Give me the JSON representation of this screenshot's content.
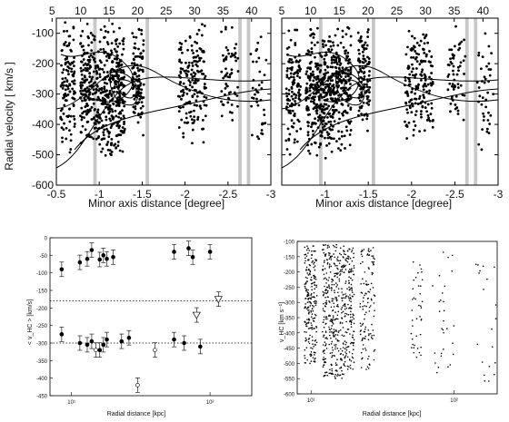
{
  "top_axis_ticks": [
    "5",
    "10",
    "15",
    "20",
    "25",
    "30",
    "35",
    "40"
  ],
  "chart_data": [
    {
      "type": "scatter",
      "panel": "top-left",
      "xlabel": "Minor axis distance  [degree]",
      "ylabel": "Radial velocity  [ km/s ]",
      "xlim": [
        -0.5,
        -3.0
      ],
      "ylim": [
        -600,
        -50
      ],
      "x_ticks": [
        -0.5,
        -1,
        -1.5,
        -2,
        -2.5,
        -3
      ],
      "x_tick_labels": [
        "-0.5",
        "-1",
        "-1.5",
        "-2",
        "-2.5",
        "-3"
      ],
      "y_ticks": [
        -100,
        -200,
        -300,
        -400,
        -500,
        -600
      ],
      "y_tick_labels": [
        "-100",
        "-200",
        "-300",
        "-400",
        "-500",
        "-600"
      ],
      "top_ticks": [
        5,
        10,
        15,
        20,
        25,
        30,
        35,
        40
      ],
      "shaded_bands": [
        [
          -0.93,
          -0.97
        ],
        [
          -1.54,
          -1.58
        ],
        [
          -2.62,
          -2.66
        ],
        [
          -2.72,
          -2.76
        ]
      ],
      "point_clusters": [
        {
          "x": [
            -0.55,
            -0.72
          ],
          "y": [
            -510,
            -60
          ],
          "n": 120
        },
        {
          "x": [
            -0.78,
            -1.3
          ],
          "y": [
            -520,
            -60
          ],
          "n": 520
        },
        {
          "x": [
            -1.38,
            -1.52
          ],
          "y": [
            -450,
            -60
          ],
          "n": 110
        },
        {
          "x": [
            -1.92,
            -2.25
          ],
          "y": [
            -470,
            -60
          ],
          "n": 170
        },
        {
          "x": [
            -2.42,
            -2.62
          ],
          "y": [
            -420,
            -60
          ],
          "n": 60
        },
        {
          "x": [
            -2.76,
            -2.95
          ],
          "y": [
            -520,
            -60
          ],
          "n": 40
        }
      ],
      "grid": false,
      "legend": "none"
    },
    {
      "type": "scatter",
      "panel": "top-right",
      "xlim": [
        -0.5,
        -3.0
      ],
      "ylim": [
        -600,
        -50
      ],
      "x_ticks": [
        -1,
        -1.5,
        -2,
        -2.5,
        -3
      ],
      "x_tick_labels": [
        "-1",
        "-1.5",
        "-2",
        "-2.5",
        "-3"
      ],
      "top_ticks": [
        5,
        10,
        15,
        20,
        25,
        30,
        35,
        40
      ],
      "shaded_bands": [
        [
          -0.93,
          -0.97
        ],
        [
          -1.54,
          -1.58
        ],
        [
          -2.62,
          -2.66
        ],
        [
          -2.72,
          -2.76
        ]
      ],
      "xlabel": "Minor axis distance  [degree]",
      "grid": false,
      "legend": "none"
    },
    {
      "type": "scatter",
      "panel": "bottom-left",
      "xlabel": "Radial distance [kpc]",
      "ylabel": "< v_HC > [km/s]",
      "xscale": "log",
      "xlim": [
        7,
        200
      ],
      "ylim": [
        -450,
        0
      ],
      "x_ticks": [
        10,
        100
      ],
      "x_tick_labels": [
        "10¹",
        "10²"
      ],
      "y_ticks": [
        0,
        -50,
        -100,
        -150,
        -200,
        -250,
        -300,
        -350,
        -400,
        -450
      ],
      "y_tick_labels": [
        "0",
        "-50",
        "-100",
        "-150",
        "-200",
        "-250",
        "-300",
        "-350",
        "-400",
        "-450"
      ],
      "reference_lines": [
        -180,
        -300
      ],
      "series": [
        {
          "x": [
            8.5,
            11.5,
            13,
            14,
            16,
            17,
            18,
            20,
            55,
            70,
            75,
            100
          ],
          "y": [
            -90,
            -70,
            -60,
            -35,
            -62,
            -50,
            -60,
            -55,
            -40,
            -30,
            -55,
            -40
          ]
        },
        {
          "x": [
            8.5,
            11.5,
            13,
            14,
            16,
            17,
            18,
            23,
            26,
            55,
            65,
            85
          ],
          "y": [
            -275,
            -300,
            -305,
            -295,
            -320,
            -305,
            -290,
            -295,
            -285,
            -290,
            -300,
            -310
          ]
        },
        {
          "x": [
            15,
            30,
            40
          ],
          "y": [
            -320,
            -420,
            -320
          ]
        },
        {
          "x": [
            80,
            115
          ],
          "y": [
            -220,
            -175
          ]
        }
      ],
      "grid": false,
      "legend": "none"
    },
    {
      "type": "scatter",
      "panel": "bottom-right",
      "xlabel": "Radial distance [kpc]",
      "ylabel": "v_HC [km s⁻¹]",
      "xscale": "log",
      "xlim": [
        8,
        200
      ],
      "ylim": [
        -600,
        -100
      ],
      "x_ticks": [
        10,
        100
      ],
      "x_tick_labels": [
        "10¹",
        "10²"
      ],
      "y_ticks": [
        -100,
        -150,
        -200,
        -250,
        -300,
        -350,
        -400,
        -450,
        -500,
        -550,
        -600
      ],
      "y_tick_labels": [
        "-100",
        "-150",
        "-200",
        "-250",
        "-300",
        "-350",
        "-400",
        "-450",
        "-500",
        "-550",
        "-600"
      ],
      "point_clusters": [
        {
          "x": [
            9,
            11
          ],
          "y": [
            -500,
            -110
          ],
          "n": 220
        },
        {
          "x": [
            12,
            17
          ],
          "y": [
            -550,
            -110
          ],
          "n": 350
        },
        {
          "x": [
            17,
            20
          ],
          "y": [
            -520,
            -120
          ],
          "n": 160
        },
        {
          "x": [
            22,
            28
          ],
          "y": [
            -520,
            -120
          ],
          "n": 120
        },
        {
          "x": [
            50,
            60
          ],
          "y": [
            -480,
            -130
          ],
          "n": 40
        },
        {
          "x": [
            70,
            100
          ],
          "y": [
            -560,
            -130
          ],
          "n": 30
        },
        {
          "x": [
            140,
            200
          ],
          "y": [
            -560,
            -110
          ],
          "n": 20
        }
      ],
      "grid": false,
      "legend": "none"
    }
  ]
}
